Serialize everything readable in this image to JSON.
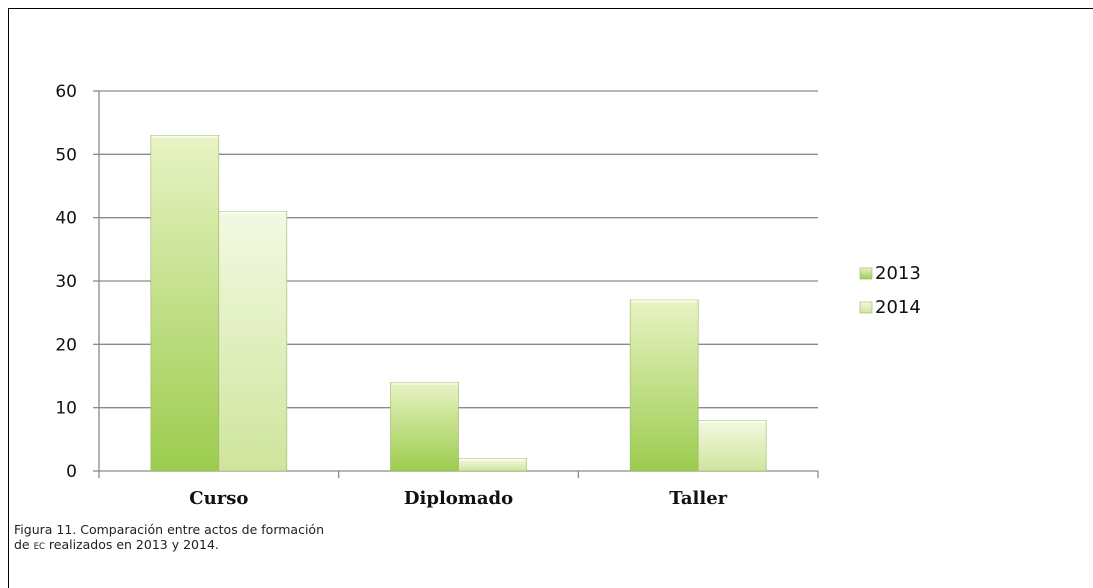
{
  "chart_data": {
    "type": "bar",
    "categories": [
      "Curso",
      "Diplomado",
      "Taller"
    ],
    "series": [
      {
        "name": "2013",
        "values": [
          53,
          14,
          27
        ],
        "color": "#a9d25e"
      },
      {
        "name": "2014",
        "values": [
          41,
          2,
          8
        ],
        "color": "#d9ebb0"
      }
    ],
    "ylim": [
      0,
      60
    ],
    "yticks": [
      0,
      10,
      20,
      30,
      40,
      50,
      60
    ],
    "grid": true,
    "legend": "right"
  },
  "caption": {
    "line1": "Figura 11. Comparación entre actos de formación",
    "line2_prefix": "de ",
    "line2_smallcaps": "EC",
    "line2_suffix": " realizados en 2013 y 2014."
  }
}
